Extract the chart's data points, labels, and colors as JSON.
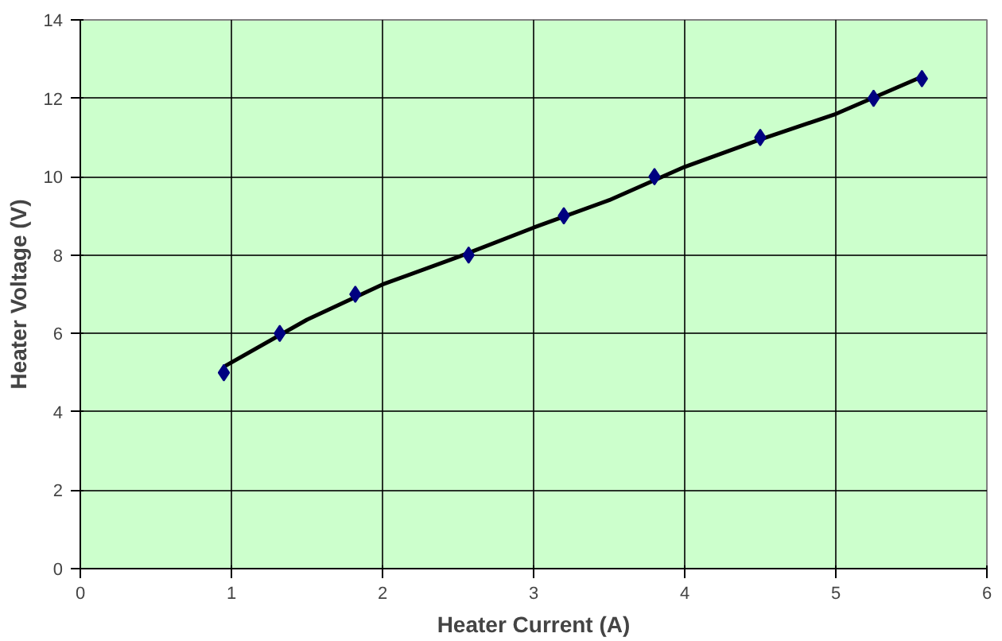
{
  "chart_data": {
    "type": "scatter",
    "xlabel": "Heater Current (A)",
    "ylabel": "Heater Voltage (V)",
    "xlim": [
      0,
      6
    ],
    "ylim": [
      0,
      14
    ],
    "xticks": [
      0,
      1,
      2,
      3,
      4,
      5,
      6
    ],
    "yticks": [
      0,
      2,
      4,
      6,
      8,
      10,
      12,
      14
    ],
    "grid": true,
    "marker": "diamond",
    "series": [
      {
        "color": "#000080",
        "x": [
          0.95,
          1.32,
          1.82,
          2.57,
          3.2,
          3.8,
          4.5,
          5.25,
          5.57
        ],
        "values": [
          5,
          6,
          7,
          8,
          9,
          10,
          11,
          12,
          12.5
        ]
      },
      {
        "type": "line",
        "color": "#000000",
        "marker": "none",
        "x": [
          0.95,
          1.5,
          2,
          2.5,
          3,
          3.5,
          4,
          4.5,
          5,
          5.57
        ],
        "values": [
          5.15,
          6.35,
          7.25,
          7.95,
          8.7,
          9.4,
          10.25,
          10.95,
          11.6,
          12.55
        ]
      }
    ]
  }
}
